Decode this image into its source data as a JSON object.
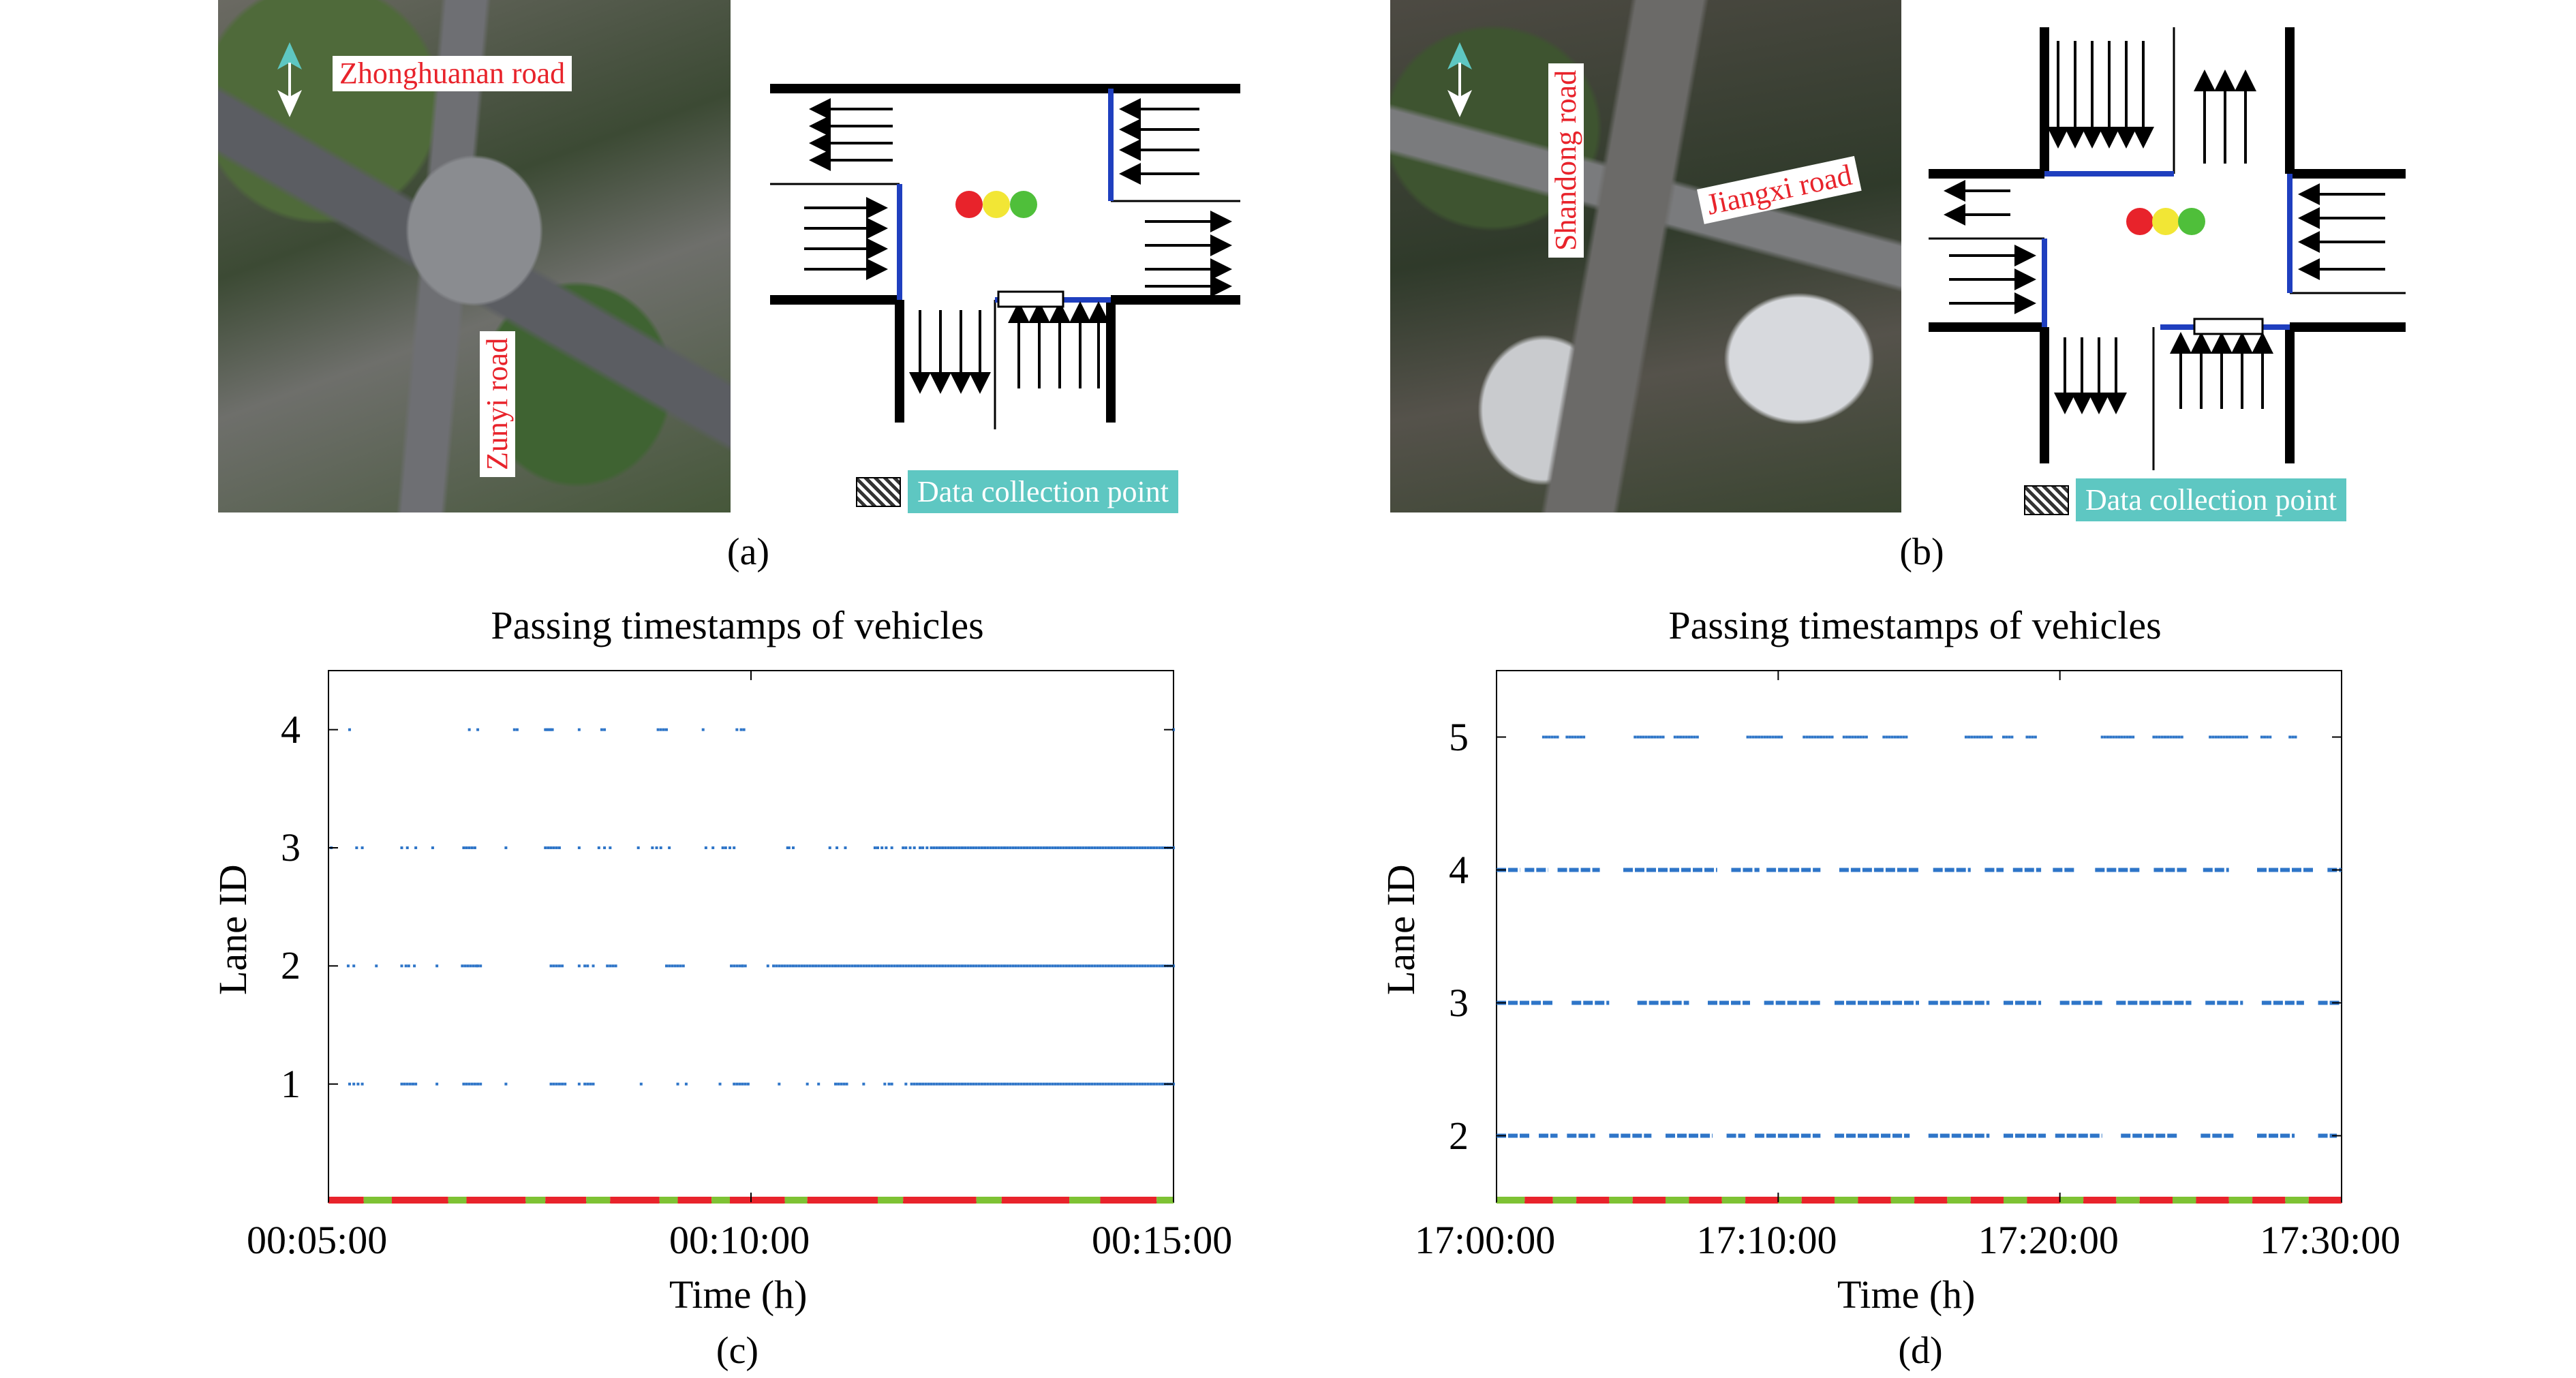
{
  "panels": {
    "a": {
      "label": "(a)",
      "roads": [
        "Zhonghuanan road",
        "Zunyi road"
      ],
      "legend_text": "Data collection point"
    },
    "b": {
      "label": "(b)",
      "roads": [
        "Shandong road",
        "Jiangxi road"
      ],
      "legend_text": "Data collection point"
    },
    "c": {
      "label": "(c)"
    },
    "d": {
      "label": "(d)"
    }
  },
  "colors": {
    "points": "#2e75c8",
    "signal_red": "#e8232b",
    "signal_green": "#7ec234",
    "blue_stopline": "#1f3fbf",
    "legend_bg": "#5ec7c2",
    "road_label": "#e8232b"
  },
  "chart_data": [
    {
      "type": "scatter",
      "title": "Passing timestamps of vehicles",
      "xlabel": "Time (h)",
      "ylabel": "Lane ID",
      "x_range": [
        "00:05:00",
        "00:15:00"
      ],
      "xticks": [
        "00:05:00",
        "00:10:00",
        "00:15:00"
      ],
      "ylim": [
        0,
        4.5
      ],
      "yticks": [
        1,
        2,
        3,
        4
      ],
      "grid": false,
      "series": [
        {
          "lane": 4,
          "times_sec": [
            315,
            400,
            406,
            432,
            434,
            454,
            455,
            456,
            457,
            458,
            459,
            478,
            494,
            496,
            534,
            536,
            538,
            540,
            566,
            590,
            593,
            595,
            900
          ]
        },
        {
          "lane": 3,
          "times_sec": [
            302,
            320,
            324,
            352,
            356,
            362,
            374,
            396,
            398,
            400,
            402,
            404,
            426,
            454,
            456,
            458,
            460,
            462,
            464,
            478,
            492,
            496,
            500,
            520,
            530,
            533,
            536,
            542,
            568,
            573,
            580,
            582,
            585,
            588,
            626,
            627,
            630,
            656,
            661,
            667,
            688,
            690,
            693,
            696,
            700,
            708,
            710,
            713,
            716,
            720,
            722,
            725,
            728,
            730,
            732,
            734,
            736,
            738,
            740,
            742,
            744,
            746,
            748,
            750,
            752,
            754,
            756,
            758,
            760,
            762,
            764,
            766,
            768,
            770,
            772,
            774,
            776,
            778,
            780,
            782,
            784,
            786,
            788,
            790,
            792,
            794,
            796,
            798,
            800,
            802,
            804,
            806,
            808,
            810,
            812,
            814,
            816,
            818,
            820,
            822,
            824,
            826,
            828,
            830,
            832,
            834,
            836,
            838,
            840,
            842,
            844,
            846,
            848,
            850,
            852,
            854,
            856,
            858,
            860,
            862,
            864,
            866,
            868,
            870,
            872,
            874,
            876,
            878,
            880,
            882,
            884,
            886,
            888,
            890,
            892,
            894,
            896,
            898,
            900
          ]
        },
        {
          "lane": 2,
          "times_sec": [
            314,
            318,
            334,
            352,
            355,
            357,
            361,
            377,
            395,
            397,
            399,
            401,
            403,
            405,
            406,
            408,
            458,
            460,
            462,
            464,
            466,
            478,
            482,
            484,
            488,
            498,
            500,
            502,
            504,
            540,
            542,
            544,
            546,
            548,
            550,
            552,
            586,
            588,
            590,
            592,
            594,
            594,
            596,
            612,
            616,
            618,
            620,
            622,
            624,
            626,
            628,
            630,
            632,
            634,
            636,
            638,
            640,
            642,
            644,
            646,
            648,
            650,
            652,
            654,
            656,
            658,
            660,
            662,
            664,
            666,
            668,
            670,
            672,
            674,
            676,
            678,
            680,
            682,
            684,
            686,
            688,
            690,
            692,
            694,
            696,
            698,
            700,
            702,
            704,
            706,
            708,
            710,
            712,
            714,
            716,
            718,
            720,
            722,
            724,
            726,
            728,
            730,
            732,
            734,
            736,
            738,
            740,
            742,
            744,
            746,
            748,
            750,
            752,
            754,
            756,
            758,
            760,
            762,
            764,
            766,
            768,
            770,
            772,
            774,
            776,
            778,
            780,
            782,
            784,
            786,
            788,
            790,
            792,
            794,
            796,
            798,
            800,
            802,
            804,
            806,
            808,
            810,
            812,
            814,
            816,
            818,
            820,
            822,
            824,
            826,
            828,
            830,
            832,
            834,
            836,
            838,
            840,
            842,
            844,
            846,
            848,
            850,
            852,
            854,
            856,
            858,
            860,
            862,
            864,
            866,
            868,
            870,
            872,
            874,
            876,
            878,
            880,
            882,
            884,
            886,
            888,
            890,
            892,
            894,
            896,
            898,
            900
          ]
        },
        {
          "lane": 1,
          "times_sec": [
            315,
            318,
            321,
            324,
            352,
            354,
            356,
            358,
            360,
            362,
            377,
            396,
            398,
            400,
            402,
            404,
            406,
            408,
            426,
            458,
            460,
            462,
            464,
            466,
            468,
            478,
            482,
            484,
            486,
            488,
            522,
            548,
            554,
            578,
            588,
            590,
            592,
            594,
            596,
            598,
            620,
            640,
            648,
            660,
            662,
            664,
            666,
            668,
            680,
            695,
            698,
            700,
            710,
            714,
            716,
            718,
            720,
            722,
            724,
            726,
            728,
            730,
            732,
            734,
            736,
            738,
            740,
            742,
            744,
            746,
            748,
            750,
            752,
            754,
            756,
            758,
            760,
            762,
            764,
            766,
            768,
            770,
            772,
            774,
            776,
            778,
            780,
            782,
            784,
            786,
            788,
            790,
            792,
            794,
            796,
            798,
            800,
            802,
            804,
            806,
            808,
            810,
            812,
            814,
            816,
            818,
            820,
            822,
            824,
            826,
            828,
            830,
            832,
            834,
            836,
            838,
            840,
            842,
            844,
            846,
            848,
            850,
            852,
            854,
            856,
            858,
            860,
            862,
            864,
            866,
            868,
            870,
            872,
            874,
            876,
            878,
            880,
            882,
            884,
            886,
            888,
            890,
            892,
            894,
            896,
            898,
            900
          ]
        }
      ],
      "signal_phases": [
        {
          "color": "red",
          "from": 300,
          "to": 325
        },
        {
          "color": "green",
          "from": 325,
          "to": 345
        },
        {
          "color": "red",
          "from": 345,
          "to": 385
        },
        {
          "color": "green",
          "from": 385,
          "to": 398
        },
        {
          "color": "red",
          "from": 398,
          "to": 440
        },
        {
          "color": "green",
          "from": 440,
          "to": 454
        },
        {
          "color": "red",
          "from": 454,
          "to": 483
        },
        {
          "color": "green",
          "from": 483,
          "to": 500
        },
        {
          "color": "red",
          "from": 500,
          "to": 535
        },
        {
          "color": "green",
          "from": 535,
          "to": 548
        },
        {
          "color": "red",
          "from": 548,
          "to": 572
        },
        {
          "color": "green",
          "from": 572,
          "to": 585
        },
        {
          "color": "red",
          "from": 585,
          "to": 624
        },
        {
          "color": "green",
          "from": 624,
          "to": 640
        },
        {
          "color": "red",
          "from": 640,
          "to": 690
        },
        {
          "color": "green",
          "from": 690,
          "to": 708
        },
        {
          "color": "red",
          "from": 708,
          "to": 760
        },
        {
          "color": "green",
          "from": 760,
          "to": 778
        },
        {
          "color": "red",
          "from": 778,
          "to": 826
        },
        {
          "color": "green",
          "from": 826,
          "to": 848
        },
        {
          "color": "red",
          "from": 848,
          "to": 888
        },
        {
          "color": "green",
          "from": 888,
          "to": 900
        }
      ]
    },
    {
      "type": "scatter",
      "title": "Passing timestamps of vehicles",
      "xlabel": "Time (h)",
      "ylabel": "Lane ID",
      "x_range": [
        "17:00:00",
        "17:30:00"
      ],
      "xticks": [
        "17:00:00",
        "17:10:00",
        "17:20:00",
        "17:30:00"
      ],
      "ylim": [
        1.5,
        5.5
      ],
      "yticks": [
        2,
        3,
        4,
        5
      ],
      "grid": false,
      "series": [
        {
          "lane": 5,
          "dense": false,
          "segments": [
            [
              100,
              130
            ],
            [
              150,
              190
            ],
            [
              295,
              360
            ],
            [
              380,
              430
            ],
            [
              535,
              610
            ],
            [
              655,
              720
            ],
            [
              740,
              790
            ],
            [
              825,
              875
            ],
            [
              1000,
              1055
            ],
            [
              1080,
              1100
            ],
            [
              1130,
              1150
            ],
            [
              1290,
              1360
            ],
            [
              1400,
              1460
            ],
            [
              1520,
              1600
            ],
            [
              1630,
              1650
            ],
            [
              1690,
              1705
            ]
          ]
        },
        {
          "lane": 4,
          "dense": true,
          "segments": [
            [
              0,
              50
            ],
            [
              60,
              110
            ],
            [
              130,
              220
            ],
            [
              270,
              470
            ],
            [
              500,
              560
            ],
            [
              575,
              690
            ],
            [
              730,
              900
            ],
            [
              930,
              1010
            ],
            [
              1040,
              1080
            ],
            [
              1100,
              1160
            ],
            [
              1185,
              1230
            ],
            [
              1275,
              1370
            ],
            [
              1400,
              1470
            ],
            [
              1505,
              1560
            ],
            [
              1620,
              1740
            ],
            [
              1770,
              1800
            ]
          ]
        },
        {
          "lane": 3,
          "dense": true,
          "segments": [
            [
              0,
              120
            ],
            [
              160,
              240
            ],
            [
              300,
              410
            ],
            [
              450,
              540
            ],
            [
              570,
              690
            ],
            [
              720,
              900
            ],
            [
              920,
              1050
            ],
            [
              1080,
              1160
            ],
            [
              1200,
              1290
            ],
            [
              1320,
              1480
            ],
            [
              1510,
              1590
            ],
            [
              1630,
              1720
            ],
            [
              1750,
              1800
            ]
          ]
        },
        {
          "lane": 2,
          "dense": true,
          "segments": [
            [
              0,
              70
            ],
            [
              90,
              130
            ],
            [
              150,
              210
            ],
            [
              240,
              330
            ],
            [
              360,
              460
            ],
            [
              490,
              530
            ],
            [
              550,
              690
            ],
            [
              720,
              880
            ],
            [
              920,
              1050
            ],
            [
              1080,
              1170
            ],
            [
              1190,
              1290
            ],
            [
              1330,
              1450
            ],
            [
              1500,
              1570
            ],
            [
              1620,
              1700
            ],
            [
              1750,
              1790
            ]
          ]
        }
      ],
      "signal_phases": [
        {
          "color": "green",
          "from": 0,
          "to": 60
        },
        {
          "color": "red",
          "from": 60,
          "to": 120
        },
        {
          "color": "green",
          "from": 120,
          "to": 170
        },
        {
          "color": "red",
          "from": 170,
          "to": 240
        },
        {
          "color": "green",
          "from": 240,
          "to": 290
        },
        {
          "color": "red",
          "from": 290,
          "to": 360
        },
        {
          "color": "green",
          "from": 360,
          "to": 410
        },
        {
          "color": "red",
          "from": 410,
          "to": 480
        },
        {
          "color": "green",
          "from": 480,
          "to": 530
        },
        {
          "color": "red",
          "from": 530,
          "to": 600
        },
        {
          "color": "green",
          "from": 600,
          "to": 650
        },
        {
          "color": "red",
          "from": 650,
          "to": 720
        },
        {
          "color": "green",
          "from": 720,
          "to": 770
        },
        {
          "color": "red",
          "from": 770,
          "to": 840
        },
        {
          "color": "green",
          "from": 840,
          "to": 890
        },
        {
          "color": "red",
          "from": 890,
          "to": 960
        },
        {
          "color": "green",
          "from": 960,
          "to": 1010
        },
        {
          "color": "red",
          "from": 1010,
          "to": 1080
        },
        {
          "color": "green",
          "from": 1080,
          "to": 1130
        },
        {
          "color": "red",
          "from": 1130,
          "to": 1200
        },
        {
          "color": "green",
          "from": 1200,
          "to": 1250
        },
        {
          "color": "red",
          "from": 1250,
          "to": 1320
        },
        {
          "color": "green",
          "from": 1320,
          "to": 1370
        },
        {
          "color": "red",
          "from": 1370,
          "to": 1440
        },
        {
          "color": "green",
          "from": 1440,
          "to": 1490
        },
        {
          "color": "red",
          "from": 1490,
          "to": 1560
        },
        {
          "color": "green",
          "from": 1560,
          "to": 1610
        },
        {
          "color": "red",
          "from": 1610,
          "to": 1680
        },
        {
          "color": "green",
          "from": 1680,
          "to": 1730
        },
        {
          "color": "red",
          "from": 1730,
          "to": 1800
        }
      ]
    }
  ]
}
